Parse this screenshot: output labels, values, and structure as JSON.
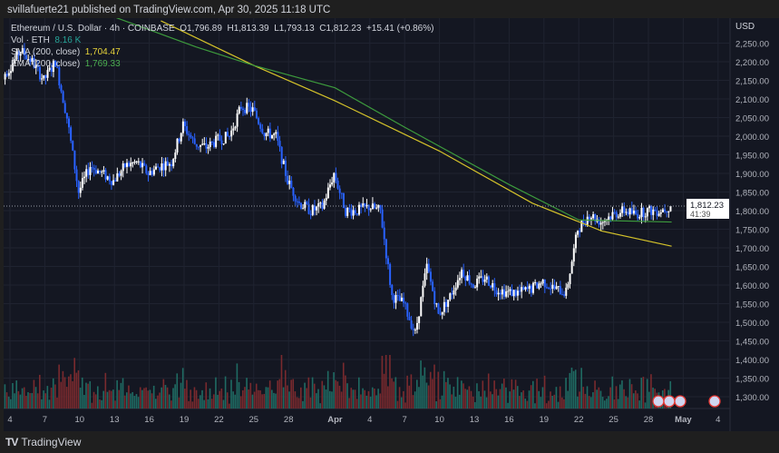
{
  "publisher": "svillafuerte21 published on TradingView.com, Apr 30, 2025 11:18 UTC",
  "legend": {
    "symbol": "Ethereum / U.S. Dollar · 4h · COINBASE",
    "open": "O1,796.89",
    "high": "H1,813.39",
    "low": "L1,793.13",
    "close": "C1,812.23",
    "change": "+15.41 (+0.86%)",
    "vol_label": "Vol · ETH",
    "vol_value": "8.16 K",
    "sma_label": "SMA (200, close)",
    "sma_value": "1,704.47",
    "ema_label": "EMA (200, close)",
    "ema_value": "1,769.33"
  },
  "currency": "USD",
  "footer": "TradingView",
  "colors": {
    "up": "#ffffff",
    "down": "#2962ff",
    "sma": "#d4c22a",
    "ema": "#3d9b3d",
    "vol_up": "#1f6b63",
    "vol_down": "#7a2a2e",
    "background": "#141722"
  },
  "chart_data": {
    "type": "candlestick",
    "interval": "4h",
    "y_ticks": [
      "2,250.00",
      "2,200.00",
      "2,150.00",
      "2,100.00",
      "2,050.00",
      "2,000.00",
      "1,950.00",
      "1,900.00",
      "1,850.00",
      "1,800.00",
      "1,750.00",
      "1,700.00",
      "1,650.00",
      "1,600.00",
      "1,550.00",
      "1,500.00",
      "1,450.00",
      "1,400.00",
      "1,350.00",
      "1,300.00"
    ],
    "ylim": [
      1280,
      2300
    ],
    "x_ticks": [
      {
        "d": "2025-03-04",
        "l": "4"
      },
      {
        "d": "2025-03-07",
        "l": "7"
      },
      {
        "d": "2025-03-10",
        "l": "10"
      },
      {
        "d": "2025-03-13",
        "l": "13"
      },
      {
        "d": "2025-03-16",
        "l": "16"
      },
      {
        "d": "2025-03-19",
        "l": "19"
      },
      {
        "d": "2025-03-22",
        "l": "22"
      },
      {
        "d": "2025-03-25",
        "l": "25"
      },
      {
        "d": "2025-03-28",
        "l": "28"
      },
      {
        "d": "2025-04-01",
        "l": "Apr"
      },
      {
        "d": "2025-04-04",
        "l": "4"
      },
      {
        "d": "2025-04-07",
        "l": "7"
      },
      {
        "d": "2025-04-10",
        "l": "10"
      },
      {
        "d": "2025-04-13",
        "l": "13"
      },
      {
        "d": "2025-04-16",
        "l": "16"
      },
      {
        "d": "2025-04-19",
        "l": "19"
      },
      {
        "d": "2025-04-22",
        "l": "22"
      },
      {
        "d": "2025-04-25",
        "l": "25"
      },
      {
        "d": "2025-04-28",
        "l": "28"
      },
      {
        "d": "2025-05-01",
        "l": "May"
      },
      {
        "d": "2025-05-04",
        "l": "4"
      }
    ],
    "start_date": "2025-03-03",
    "daily_close": [
      2150,
      2180,
      2230,
      2200,
      2150,
      2200,
      2050,
      1850,
      1920,
      1900,
      1880,
      1920,
      1930,
      1900,
      1920,
      1930,
      2030,
      1980,
      1970,
      1990,
      2000,
      2080,
      2070,
      2010,
      2000,
      1880,
      1820,
      1800,
      1810,
      1900,
      1800,
      1800,
      1810,
      1800,
      1570,
      1550,
      1470,
      1650,
      1520,
      1570,
      1640,
      1600,
      1620,
      1590,
      1580,
      1580,
      1590,
      1610,
      1590,
      1580,
      1750,
      1790,
      1770,
      1790,
      1800,
      1790,
      1800,
      1800,
      1812.23
    ],
    "sma_200": [
      {
        "d": "2025-03-17",
        "v": 2310
      },
      {
        "d": "2025-03-25",
        "v": 2190
      },
      {
        "d": "2025-04-01",
        "v": 2095
      },
      {
        "d": "2025-04-10",
        "v": 1960
      },
      {
        "d": "2025-04-18",
        "v": 1820
      },
      {
        "d": "2025-04-24",
        "v": 1745
      },
      {
        "d": "2025-04-30",
        "v": 1704.47
      }
    ],
    "ema_200": [
      {
        "d": "2025-03-13",
        "v": 2320
      },
      {
        "d": "2025-03-20",
        "v": 2240
      },
      {
        "d": "2025-03-25",
        "v": 2190
      },
      {
        "d": "2025-04-01",
        "v": 2130
      },
      {
        "d": "2025-04-07",
        "v": 2024
      },
      {
        "d": "2025-04-16",
        "v": 1870
      },
      {
        "d": "2025-04-22",
        "v": 1775
      },
      {
        "d": "2025-04-30",
        "v": 1769.33
      }
    ],
    "last_price": "1,812.23",
    "countdown": "41:39"
  }
}
